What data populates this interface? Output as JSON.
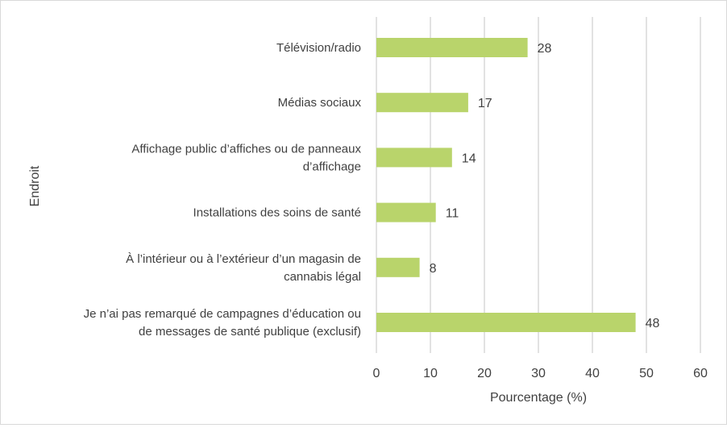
{
  "chart_data": {
    "type": "bar",
    "orientation": "horizontal",
    "categories": [
      [
        "Télévision/radio"
      ],
      [
        "Médias sociaux"
      ],
      [
        "Affichage public d’affiches ou de panneaux",
        "d’affichage"
      ],
      [
        "Installations des soins de santé"
      ],
      [
        "À l’intérieur ou à l’extérieur d’un magasin de",
        "cannabis légal"
      ],
      [
        "Je n’ai pas remarqué de campagnes d’éducation ou",
        "de messages de santé publique (exclusif)"
      ]
    ],
    "values": [
      28,
      17,
      14,
      11,
      8,
      48
    ],
    "data_labels": [
      "28",
      "17",
      "14",
      "11",
      "8",
      "48"
    ],
    "xlabel": "Pourcentage (%)",
    "ylabel": "Endroit",
    "xlim": [
      0,
      60
    ],
    "xticks": [
      "0",
      "10",
      "20",
      "30",
      "40",
      "50",
      "60"
    ],
    "grid": true,
    "bar_color": "#b9d46b",
    "grid_color": "#d9d9d9"
  }
}
